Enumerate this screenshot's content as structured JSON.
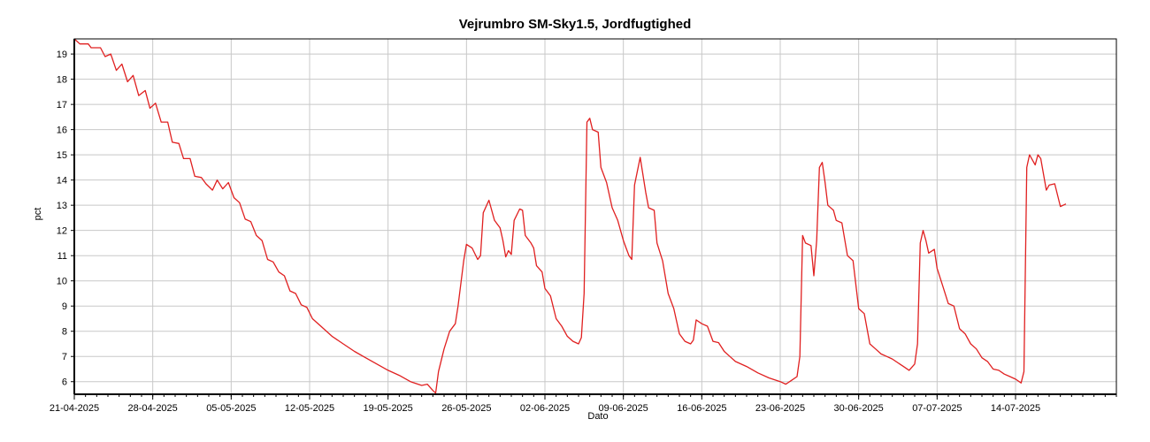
{
  "chart_data": {
    "type": "line",
    "title": "Vejrumbro SM-Sky1.5, Jordfugtighed",
    "xlabel": "Dato",
    "ylabel": "pct",
    "ylim": [
      5.5,
      19.6
    ],
    "xlim": [
      "2025-04-21",
      "2025-07-23"
    ],
    "grid": true,
    "yticks": [
      6,
      7,
      8,
      9,
      10,
      11,
      12,
      13,
      14,
      15,
      16,
      17,
      18,
      19
    ],
    "xticks": [
      "21-04-2025",
      "28-04-2025",
      "05-05-2025",
      "12-05-2025",
      "19-05-2025",
      "26-05-2025",
      "02-06-2025",
      "09-06-2025",
      "16-06-2025",
      "23-06-2025",
      "30-06-2025",
      "07-07-2025",
      "14-07-2025"
    ],
    "series": [
      {
        "color": "#e02020",
        "points": [
          [
            "2025-04-21",
            19.6
          ],
          [
            "2025-04-21T12",
            19.4
          ],
          [
            "2025-04-22T06",
            19.4
          ],
          [
            "2025-04-22T12",
            19.25
          ],
          [
            "2025-04-23T08",
            19.25
          ],
          [
            "2025-04-23T18",
            18.9
          ],
          [
            "2025-04-24T06",
            19.0
          ],
          [
            "2025-04-24T18",
            18.35
          ],
          [
            "2025-04-25T06",
            18.6
          ],
          [
            "2025-04-25T18",
            17.9
          ],
          [
            "2025-04-26T06",
            18.15
          ],
          [
            "2025-04-26T18",
            17.35
          ],
          [
            "2025-04-27T08",
            17.55
          ],
          [
            "2025-04-27T18",
            16.85
          ],
          [
            "2025-04-28T06",
            17.05
          ],
          [
            "2025-04-28T18",
            16.3
          ],
          [
            "2025-04-29T08",
            16.3
          ],
          [
            "2025-04-29T18",
            15.5
          ],
          [
            "2025-04-30T08",
            15.45
          ],
          [
            "2025-04-30T18",
            14.85
          ],
          [
            "2025-05-01T08",
            14.85
          ],
          [
            "2025-05-01T18",
            14.15
          ],
          [
            "2025-05-02T08",
            14.1
          ],
          [
            "2025-05-02T18",
            13.85
          ],
          [
            "2025-05-03T08",
            13.6
          ],
          [
            "2025-05-03T18",
            14.0
          ],
          [
            "2025-05-04T06",
            13.65
          ],
          [
            "2025-05-04T18",
            13.9
          ],
          [
            "2025-05-05T06",
            13.3
          ],
          [
            "2025-05-05T18",
            13.1
          ],
          [
            "2025-05-06T06",
            12.45
          ],
          [
            "2025-05-06T18",
            12.35
          ],
          [
            "2025-05-07T06",
            11.8
          ],
          [
            "2025-05-07T18",
            11.6
          ],
          [
            "2025-05-08T06",
            10.85
          ],
          [
            "2025-05-08T18",
            10.75
          ],
          [
            "2025-05-09T06",
            10.35
          ],
          [
            "2025-05-09T18",
            10.2
          ],
          [
            "2025-05-10T06",
            9.6
          ],
          [
            "2025-05-10T18",
            9.5
          ],
          [
            "2025-05-11T06",
            9.05
          ],
          [
            "2025-05-11T18",
            8.95
          ],
          [
            "2025-05-12T06",
            8.5
          ],
          [
            "2025-05-13",
            8.2
          ],
          [
            "2025-05-14",
            7.8
          ],
          [
            "2025-05-15",
            7.5
          ],
          [
            "2025-05-16",
            7.2
          ],
          [
            "2025-05-17",
            6.95
          ],
          [
            "2025-05-18",
            6.7
          ],
          [
            "2025-05-19",
            6.45
          ],
          [
            "2025-05-20",
            6.25
          ],
          [
            "2025-05-21",
            6.0
          ],
          [
            "2025-05-22",
            5.85
          ],
          [
            "2025-05-22T12",
            5.9
          ],
          [
            "2025-05-23",
            5.65
          ],
          [
            "2025-05-23T06",
            5.55
          ],
          [
            "2025-05-23T12",
            6.4
          ],
          [
            "2025-05-24",
            7.3
          ],
          [
            "2025-05-24T12",
            8.0
          ],
          [
            "2025-05-25",
            8.3
          ],
          [
            "2025-05-25T06",
            9.0
          ],
          [
            "2025-05-25T18",
            10.8
          ],
          [
            "2025-05-26",
            11.45
          ],
          [
            "2025-05-26T12",
            11.3
          ],
          [
            "2025-05-27",
            10.85
          ],
          [
            "2025-05-27T06",
            11.0
          ],
          [
            "2025-05-27T12",
            12.7
          ],
          [
            "2025-05-28",
            13.2
          ],
          [
            "2025-05-28T12",
            12.4
          ],
          [
            "2025-05-29",
            12.1
          ],
          [
            "2025-05-29T06",
            11.6
          ],
          [
            "2025-05-29T12",
            10.95
          ],
          [
            "2025-05-29T18",
            11.2
          ],
          [
            "2025-05-30",
            11.05
          ],
          [
            "2025-05-30T06",
            12.4
          ],
          [
            "2025-05-30T18",
            12.85
          ],
          [
            "2025-05-31",
            12.8
          ],
          [
            "2025-05-31T06",
            11.8
          ],
          [
            "2025-05-31T18",
            11.5
          ],
          [
            "2025-06-01",
            11.3
          ],
          [
            "2025-06-01T06",
            10.6
          ],
          [
            "2025-06-01T18",
            10.35
          ],
          [
            "2025-06-02",
            9.7
          ],
          [
            "2025-06-02T12",
            9.4
          ],
          [
            "2025-06-03",
            8.5
          ],
          [
            "2025-06-03T12",
            8.2
          ],
          [
            "2025-06-04",
            7.8
          ],
          [
            "2025-06-04T12",
            7.6
          ],
          [
            "2025-06-05",
            7.5
          ],
          [
            "2025-06-05T06",
            7.75
          ],
          [
            "2025-06-05T12",
            9.5
          ],
          [
            "2025-06-05T18",
            16.3
          ],
          [
            "2025-06-06",
            16.45
          ],
          [
            "2025-06-06T06",
            16.0
          ],
          [
            "2025-06-06T18",
            15.9
          ],
          [
            "2025-06-07",
            14.5
          ],
          [
            "2025-06-07T12",
            13.9
          ],
          [
            "2025-06-08",
            12.9
          ],
          [
            "2025-06-08T12",
            12.4
          ],
          [
            "2025-06-09",
            11.6
          ],
          [
            "2025-06-09T06",
            11.3
          ],
          [
            "2025-06-09T12",
            11.0
          ],
          [
            "2025-06-09T18",
            10.85
          ],
          [
            "2025-06-10",
            13.8
          ],
          [
            "2025-06-10T12",
            14.9
          ],
          [
            "2025-06-11",
            13.5
          ],
          [
            "2025-06-11T06",
            12.9
          ],
          [
            "2025-06-11T18",
            12.8
          ],
          [
            "2025-06-12",
            11.5
          ],
          [
            "2025-06-12T12",
            10.8
          ],
          [
            "2025-06-13",
            9.5
          ],
          [
            "2025-06-13T12",
            8.9
          ],
          [
            "2025-06-14",
            7.9
          ],
          [
            "2025-06-14T12",
            7.6
          ],
          [
            "2025-06-15",
            7.5
          ],
          [
            "2025-06-15T06",
            7.65
          ],
          [
            "2025-06-15T12",
            8.45
          ],
          [
            "2025-06-16",
            8.3
          ],
          [
            "2025-06-16T12",
            8.2
          ],
          [
            "2025-06-17",
            7.6
          ],
          [
            "2025-06-17T12",
            7.55
          ],
          [
            "2025-06-18",
            7.2
          ],
          [
            "2025-06-18T12",
            7.0
          ],
          [
            "2025-06-19",
            6.8
          ],
          [
            "2025-06-20",
            6.6
          ],
          [
            "2025-06-21",
            6.35
          ],
          [
            "2025-06-22",
            6.15
          ],
          [
            "2025-06-23",
            6.0
          ],
          [
            "2025-06-23T12",
            5.9
          ],
          [
            "2025-06-24",
            6.05
          ],
          [
            "2025-06-24T12",
            6.2
          ],
          [
            "2025-06-24T18",
            7.0
          ],
          [
            "2025-06-25",
            11.8
          ],
          [
            "2025-06-25T06",
            11.5
          ],
          [
            "2025-06-25T18",
            11.4
          ],
          [
            "2025-06-26",
            10.2
          ],
          [
            "2025-06-26T06",
            11.6
          ],
          [
            "2025-06-26T12",
            14.5
          ],
          [
            "2025-06-26T18",
            14.7
          ],
          [
            "2025-06-27",
            13.9
          ],
          [
            "2025-06-27T06",
            13.0
          ],
          [
            "2025-06-27T18",
            12.8
          ],
          [
            "2025-06-28",
            12.4
          ],
          [
            "2025-06-28T12",
            12.3
          ],
          [
            "2025-06-29",
            11.0
          ],
          [
            "2025-06-29T12",
            10.8
          ],
          [
            "2025-06-30",
            8.9
          ],
          [
            "2025-06-30T12",
            8.7
          ],
          [
            "2025-07-01",
            7.5
          ],
          [
            "2025-07-01T12",
            7.3
          ],
          [
            "2025-07-02",
            7.1
          ],
          [
            "2025-07-02T12",
            7.0
          ],
          [
            "2025-07-03",
            6.9
          ],
          [
            "2025-07-03T12",
            6.75
          ],
          [
            "2025-07-04",
            6.6
          ],
          [
            "2025-07-04T12",
            6.45
          ],
          [
            "2025-07-05",
            6.7
          ],
          [
            "2025-07-05T06",
            7.5
          ],
          [
            "2025-07-05T12",
            11.5
          ],
          [
            "2025-07-05T18",
            12.0
          ],
          [
            "2025-07-06",
            11.6
          ],
          [
            "2025-07-06T06",
            11.1
          ],
          [
            "2025-07-06T18",
            11.25
          ],
          [
            "2025-07-07",
            10.5
          ],
          [
            "2025-07-07T12",
            9.8
          ],
          [
            "2025-07-08",
            9.1
          ],
          [
            "2025-07-08T12",
            9.0
          ],
          [
            "2025-07-09",
            8.1
          ],
          [
            "2025-07-09T12",
            7.9
          ],
          [
            "2025-07-10",
            7.5
          ],
          [
            "2025-07-10T12",
            7.3
          ],
          [
            "2025-07-11",
            6.95
          ],
          [
            "2025-07-11T12",
            6.8
          ],
          [
            "2025-07-12",
            6.5
          ],
          [
            "2025-07-12T12",
            6.45
          ],
          [
            "2025-07-13",
            6.3
          ],
          [
            "2025-07-13T12",
            6.2
          ],
          [
            "2025-07-14",
            6.1
          ],
          [
            "2025-07-14T12",
            5.95
          ],
          [
            "2025-07-14T18",
            6.4
          ],
          [
            "2025-07-15",
            14.5
          ],
          [
            "2025-07-15T06",
            15.0
          ],
          [
            "2025-07-15T18",
            14.6
          ],
          [
            "2025-07-16",
            15.0
          ],
          [
            "2025-07-16T06",
            14.85
          ],
          [
            "2025-07-16T18",
            13.6
          ],
          [
            "2025-07-17",
            13.8
          ],
          [
            "2025-07-17T12",
            13.85
          ],
          [
            "2025-07-18",
            12.95
          ],
          [
            "2025-07-18T12",
            13.05
          ]
        ]
      }
    ]
  }
}
